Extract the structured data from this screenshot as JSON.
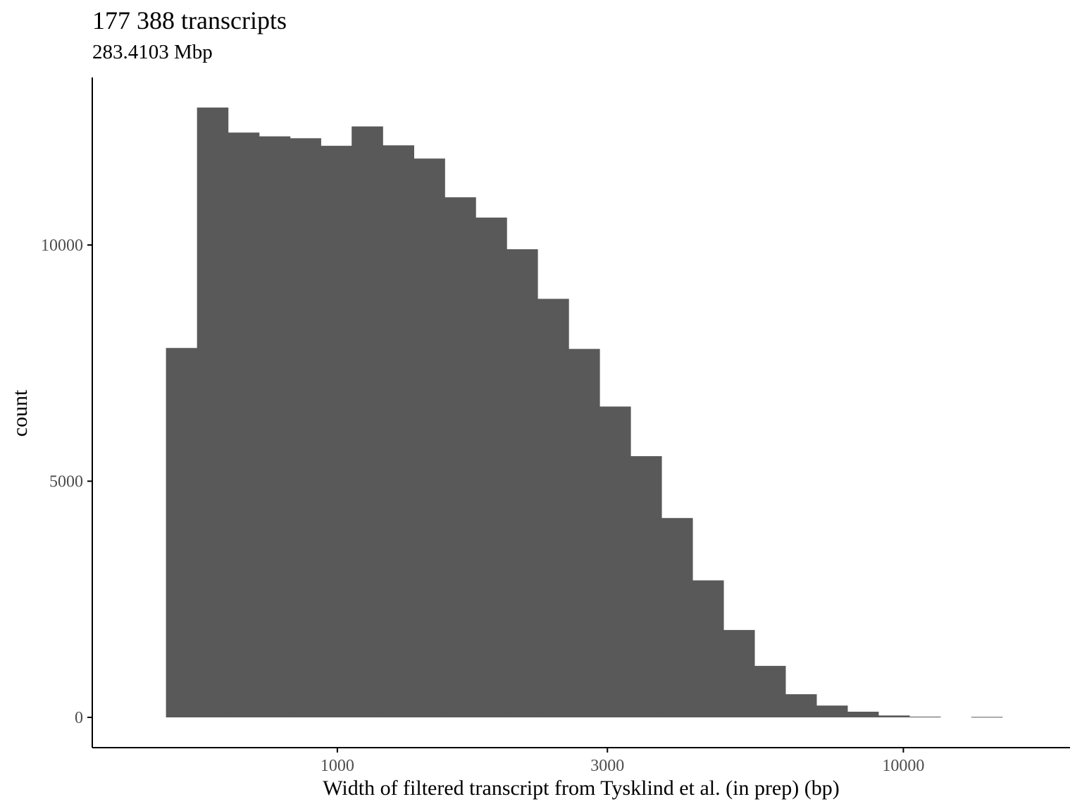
{
  "chart_data": {
    "type": "bar",
    "title": "177 388 transcripts",
    "subtitle": "283.4103 Mbp",
    "xlabel": "Width of filtered transcript from Tysklind et al. (in prep) (bp)",
    "ylabel": "count",
    "x_scale": "log10",
    "x_ticks": [
      1000,
      3000,
      10000
    ],
    "x_tick_labels": [
      "1000",
      "3000",
      "10000"
    ],
    "y_ticks": [
      0,
      5000,
      10000
    ],
    "y_tick_labels": [
      "0",
      "5000",
      "10000"
    ],
    "ylim": [
      0,
      13150
    ],
    "xlim": [
      369,
      19700
    ],
    "bin_width_log10": 0.055,
    "bins": [
      {
        "x_start": 498,
        "count": 7820
      },
      {
        "x_start": 565,
        "count": 12910
      },
      {
        "x_start": 641,
        "count": 12380
      },
      {
        "x_start": 727,
        "count": 12300
      },
      {
        "x_start": 824,
        "count": 12260
      },
      {
        "x_start": 935,
        "count": 12100
      },
      {
        "x_start": 1060,
        "count": 12510
      },
      {
        "x_start": 1203,
        "count": 12110
      },
      {
        "x_start": 1364,
        "count": 11830
      },
      {
        "x_start": 1547,
        "count": 11010
      },
      {
        "x_start": 1755,
        "count": 10580
      },
      {
        "x_start": 1990,
        "count": 9910
      },
      {
        "x_start": 2258,
        "count": 8860
      },
      {
        "x_start": 2561,
        "count": 7800
      },
      {
        "x_start": 2905,
        "count": 6580
      },
      {
        "x_start": 3295,
        "count": 5530
      },
      {
        "x_start": 3738,
        "count": 4220
      },
      {
        "x_start": 4240,
        "count": 2900
      },
      {
        "x_start": 4809,
        "count": 1850
      },
      {
        "x_start": 5455,
        "count": 1090
      },
      {
        "x_start": 6188,
        "count": 490
      },
      {
        "x_start": 7019,
        "count": 250
      },
      {
        "x_start": 7962,
        "count": 120
      },
      {
        "x_start": 9032,
        "count": 40
      },
      {
        "x_start": 10245,
        "count": 15
      },
      {
        "x_start": 11621,
        "count": 0
      },
      {
        "x_start": 13182,
        "count": 10
      }
    ],
    "bar_color": "#595959",
    "axis_color": "#000000",
    "tick_label_color": "#4d4d4d",
    "grid": false,
    "legend": "none"
  }
}
